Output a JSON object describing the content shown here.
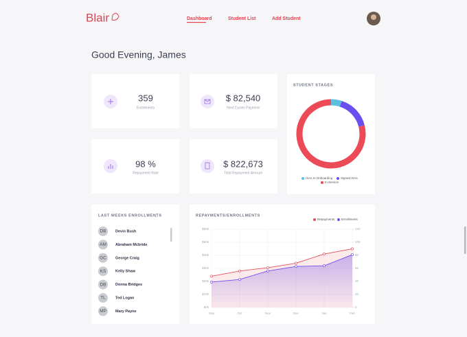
{
  "header": {
    "logo": "Blair",
    "nav": [
      "Dashboard",
      "Student List",
      "Add Student"
    ]
  },
  "greeting": "Good Evening, James",
  "stats": [
    {
      "value": "359",
      "label": "Enrollments"
    },
    {
      "value": "$ 82,540",
      "label": "Next Cycles Payment"
    },
    {
      "value": "98 %",
      "label": "Repayment Rate"
    },
    {
      "value": "$ 822,673",
      "label": "Total Repayment Amount"
    }
  ],
  "enrollments": {
    "title": "LAST WEEKS ENROLLMENTS",
    "students": [
      {
        "initials": "DB",
        "name": "Devin Bush"
      },
      {
        "initials": "AM",
        "name": "Abraham Mcbride"
      },
      {
        "initials": "GC",
        "name": "George Craig"
      },
      {
        "initials": "KS",
        "name": "Kelly Shaw"
      },
      {
        "initials": "DB",
        "name": "Donna Bridges"
      },
      {
        "initials": "TL",
        "name": "Ted Logan"
      },
      {
        "initials": "MP",
        "name": "Mary Payne"
      }
    ]
  },
  "chart_data": [
    {
      "type": "donut",
      "title": "STUDENT STAGES",
      "categories": [
        "ISAs In Onboarding",
        "Signed ISAs",
        "In Service"
      ],
      "values": [
        5,
        16,
        79
      ],
      "colors": [
        "#5bc0de",
        "#6a4ff0",
        "#ec4a57"
      ]
    },
    {
      "type": "line",
      "title": "REPAYMENTS/ENROLLMENTS",
      "categories": [
        "Sep",
        "Oct",
        "Nov",
        "Dec",
        "Jan",
        "Feb"
      ],
      "series": [
        {
          "name": "Repayments",
          "color": "#e5505c",
          "values": [
            24000,
            28000,
            30500,
            34000,
            41000,
            45000
          ]
        },
        {
          "name": "Enrollments",
          "color": "#6a4ff0",
          "axis": "y2",
          "values": [
            39,
            43,
            56,
            63,
            64,
            81
          ]
        }
      ],
      "ylim": [
        0,
        60000
      ],
      "yticks": [
        {
          "value": 0,
          "label": "$0k"
        },
        {
          "value": 10000,
          "label": "$10k"
        },
        {
          "value": 20000,
          "label": "$20k"
        },
        {
          "value": 30000,
          "label": "$30k"
        },
        {
          "value": 40000,
          "label": "$40k"
        },
        {
          "value": 50000,
          "label": "$50k"
        },
        {
          "value": 60000,
          "label": "$60k"
        }
      ],
      "y2lim": [
        0,
        120
      ],
      "y2ticks": [
        0,
        20,
        40,
        60,
        80,
        100,
        120
      ],
      "grid": true
    }
  ]
}
